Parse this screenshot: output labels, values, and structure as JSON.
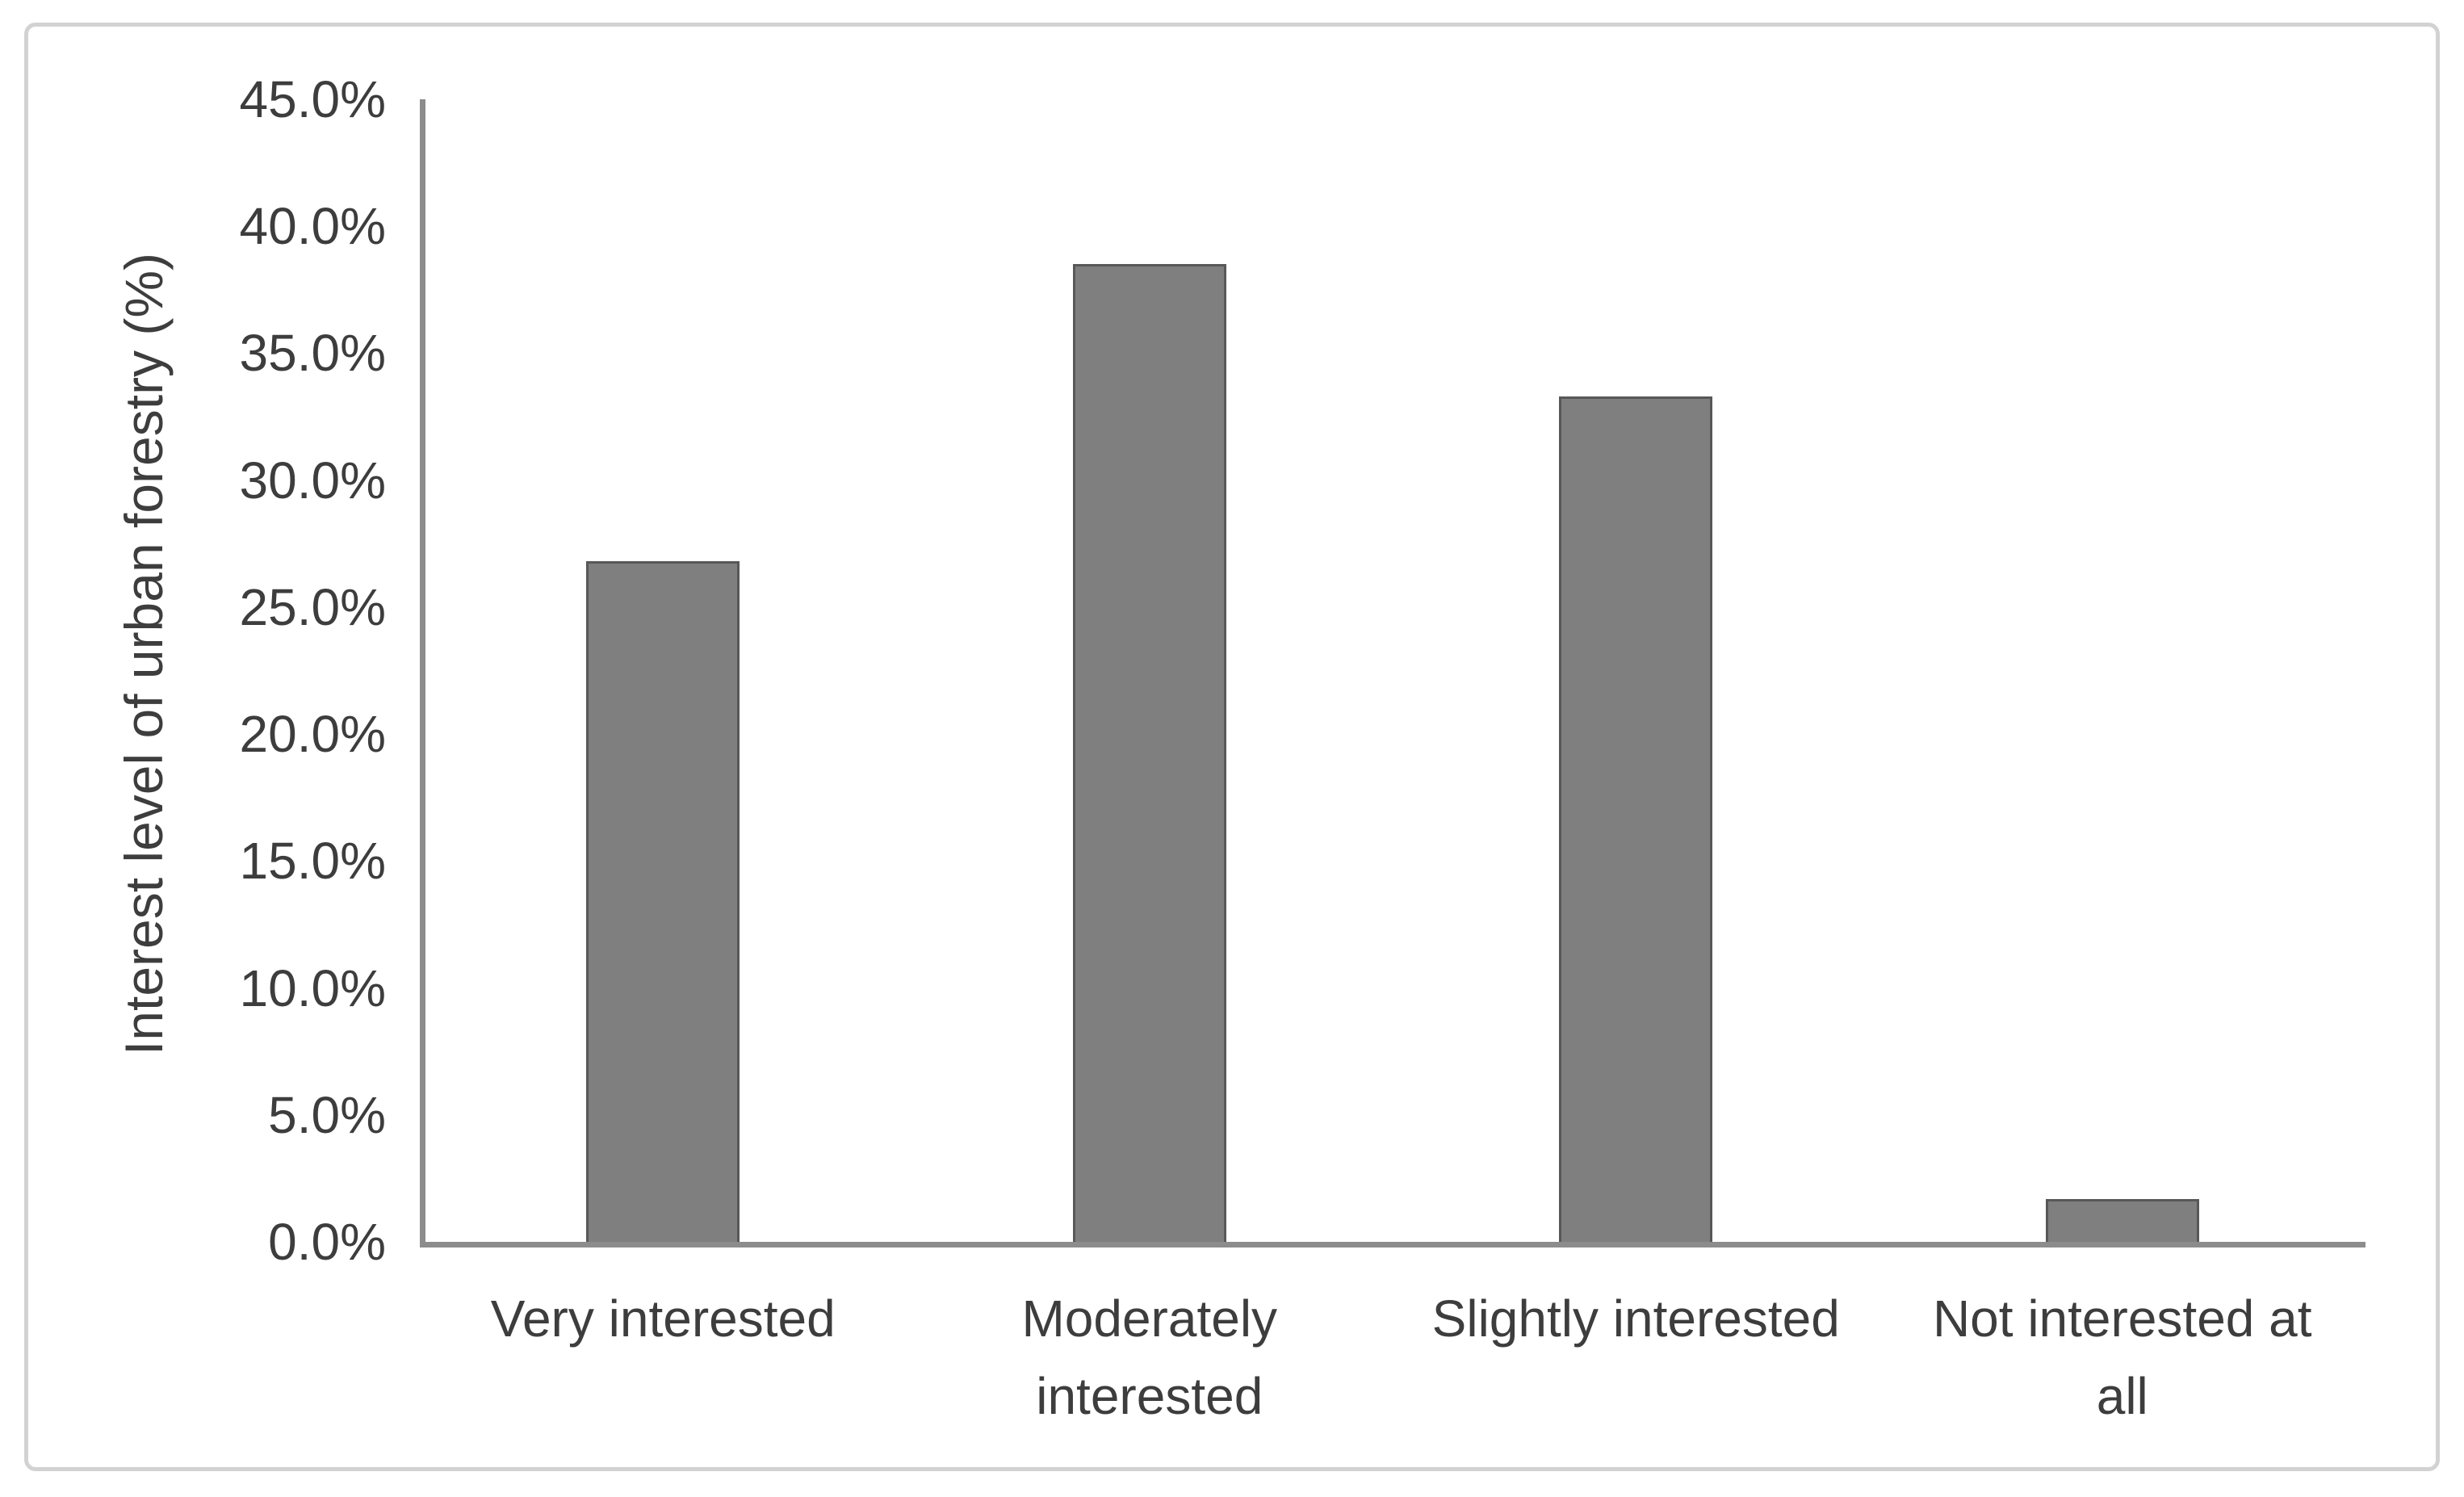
{
  "chart_data": {
    "type": "bar",
    "title": "",
    "xlabel": "",
    "ylabel": "Interest level of urban forestry (%)",
    "categories": [
      "Very interested",
      "Moderately interested",
      "Slightly interested",
      "Not interested at all"
    ],
    "categories_display_lines": [
      [
        "Very interested"
      ],
      [
        "Moderately",
        "interested"
      ],
      [
        "Slightly interested"
      ],
      [
        "Not interested at",
        "all"
      ]
    ],
    "values": [
      26.8,
      38.5,
      33.3,
      1.7
    ],
    "value_unit": "%",
    "ylim": [
      0,
      45
    ],
    "y_tick_step": 5,
    "y_tick_labels": [
      "0.0%",
      "5.0%",
      "10.0%",
      "15.0%",
      "20.0%",
      "25.0%",
      "30.0%",
      "35.0%",
      "40.0%",
      "45.0%"
    ],
    "grid": false,
    "legend": false,
    "colors": {
      "bar_fill": "#7F7F7F",
      "bar_border": "#585858",
      "axis_line": "#8C8C8C",
      "text": "#3D3D3D",
      "frame_border": "#D2D2D2",
      "background": "#FFFFFF"
    }
  }
}
